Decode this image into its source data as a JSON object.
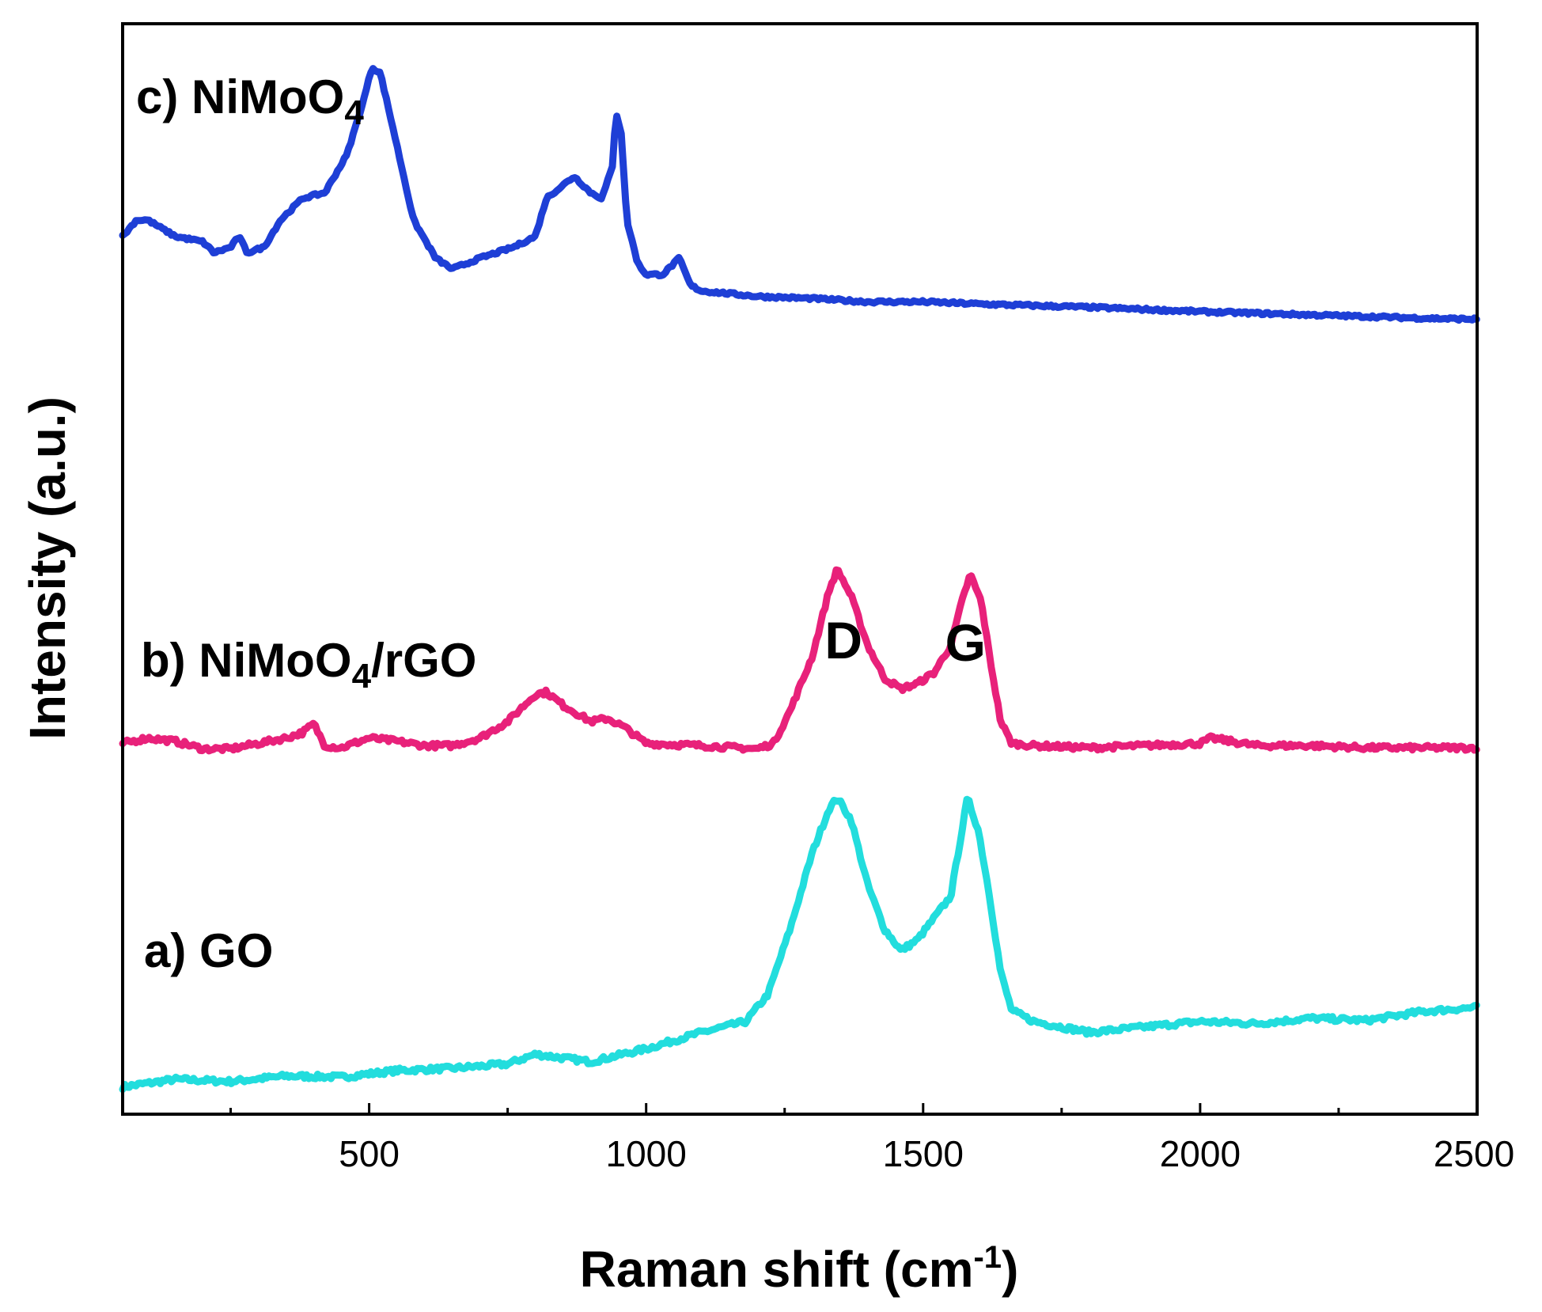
{
  "chart_data": {
    "type": "line",
    "title": "",
    "xlabel": "Raman shift (cm-1)",
    "xlabel_parts": {
      "main": "Raman shift (cm",
      "sup": "-1",
      "close": ")"
    },
    "ylabel": "Intensity (a.u.)",
    "xlim": [
      55,
      2500
    ],
    "ylim": [
      0,
      100
    ],
    "xticks": [
      500,
      1000,
      1500,
      2000,
      2500
    ],
    "xticks_minor": [
      250,
      750,
      1250,
      1750,
      2250
    ],
    "yticks": [],
    "grid": false,
    "annotations": [
      {
        "text": "D",
        "x": 1345
      },
      {
        "text": "G",
        "x": 1585
      }
    ],
    "series": [
      {
        "id": "a",
        "name": "a) GO",
        "label_parts": [
          "a) GO"
        ],
        "color": "#22dddd",
        "points": [
          [
            55,
            2.5
          ],
          [
            150,
            3.2
          ],
          [
            250,
            3.0
          ],
          [
            350,
            3.5
          ],
          [
            450,
            3.4
          ],
          [
            550,
            4.0
          ],
          [
            650,
            4.2
          ],
          [
            750,
            4.6
          ],
          [
            800,
            5.5
          ],
          [
            900,
            4.8
          ],
          [
            1000,
            6.0
          ],
          [
            1100,
            7.5
          ],
          [
            1180,
            8.5
          ],
          [
            1220,
            11
          ],
          [
            1260,
            17
          ],
          [
            1300,
            24
          ],
          [
            1330,
            28
          ],
          [
            1345,
            29
          ],
          [
            1370,
            27
          ],
          [
            1400,
            21
          ],
          [
            1430,
            17
          ],
          [
            1460,
            15
          ],
          [
            1490,
            16
          ],
          [
            1520,
            18
          ],
          [
            1550,
            20
          ],
          [
            1570,
            26
          ],
          [
            1580,
            29
          ],
          [
            1600,
            26
          ],
          [
            1620,
            20
          ],
          [
            1640,
            13
          ],
          [
            1660,
            9.5
          ],
          [
            1700,
            8.5
          ],
          [
            1800,
            7.5
          ],
          [
            1900,
            8.0
          ],
          [
            2000,
            8.5
          ],
          [
            2100,
            8.3
          ],
          [
            2200,
            8.8
          ],
          [
            2300,
            8.6
          ],
          [
            2400,
            9.4
          ],
          [
            2500,
            9.8
          ]
        ]
      },
      {
        "id": "b",
        "name": "b) NiMoO4/rGO",
        "label_parts": [
          "b) NiMoO",
          "4",
          "/rGO"
        ],
        "color": "#e8217a",
        "points": [
          [
            55,
            34
          ],
          [
            100,
            34.5
          ],
          [
            150,
            34.2
          ],
          [
            200,
            33.5
          ],
          [
            250,
            33.5
          ],
          [
            300,
            34
          ],
          [
            350,
            34.5
          ],
          [
            380,
            35
          ],
          [
            400,
            35.8
          ],
          [
            420,
            33.8
          ],
          [
            450,
            33.6
          ],
          [
            500,
            34.5
          ],
          [
            550,
            34.2
          ],
          [
            600,
            33.8
          ],
          [
            650,
            33.8
          ],
          [
            700,
            34.5
          ],
          [
            750,
            36
          ],
          [
            800,
            38.5
          ],
          [
            820,
            38.7
          ],
          [
            850,
            37.5
          ],
          [
            900,
            36
          ],
          [
            930,
            36.3
          ],
          [
            960,
            35.5
          ],
          [
            1000,
            34
          ],
          [
            1100,
            33.8
          ],
          [
            1200,
            33.5
          ],
          [
            1230,
            34
          ],
          [
            1260,
            37
          ],
          [
            1300,
            42
          ],
          [
            1330,
            48
          ],
          [
            1345,
            50
          ],
          [
            1370,
            47.5
          ],
          [
            1400,
            43
          ],
          [
            1430,
            40
          ],
          [
            1460,
            39
          ],
          [
            1490,
            39.5
          ],
          [
            1520,
            40.5
          ],
          [
            1550,
            43
          ],
          [
            1570,
            47
          ],
          [
            1585,
            49.5
          ],
          [
            1605,
            47
          ],
          [
            1620,
            42
          ],
          [
            1640,
            36
          ],
          [
            1660,
            34
          ],
          [
            1700,
            33.8
          ],
          [
            1800,
            33.6
          ],
          [
            1900,
            33.8
          ],
          [
            2000,
            34
          ],
          [
            2020,
            34.5
          ],
          [
            2100,
            33.8
          ],
          [
            2200,
            33.8
          ],
          [
            2300,
            33.6
          ],
          [
            2400,
            33.6
          ],
          [
            2500,
            33.6
          ]
        ]
      },
      {
        "id": "c",
        "name": "c) NiMoO4",
        "label_parts": [
          "c) NiMoO",
          "4"
        ],
        "color": "#1e3fd6",
        "points": [
          [
            55,
            80.5
          ],
          [
            80,
            82
          ],
          [
            100,
            82
          ],
          [
            150,
            80.5
          ],
          [
            200,
            80
          ],
          [
            220,
            79
          ],
          [
            250,
            79.5
          ],
          [
            265,
            80.5
          ],
          [
            280,
            79
          ],
          [
            310,
            79.5
          ],
          [
            340,
            82
          ],
          [
            380,
            84
          ],
          [
            420,
            84.5
          ],
          [
            460,
            88
          ],
          [
            490,
            93
          ],
          [
            505,
            96
          ],
          [
            520,
            95.5
          ],
          [
            545,
            90
          ],
          [
            580,
            82
          ],
          [
            620,
            78.5
          ],
          [
            650,
            77.5
          ],
          [
            700,
            78.5
          ],
          [
            760,
            79.5
          ],
          [
            800,
            80.5
          ],
          [
            820,
            84
          ],
          [
            845,
            85
          ],
          [
            870,
            86
          ],
          [
            900,
            84.5
          ],
          [
            920,
            84
          ],
          [
            940,
            87
          ],
          [
            945,
            92
          ],
          [
            955,
            90
          ],
          [
            965,
            82
          ],
          [
            985,
            78
          ],
          [
            1000,
            77
          ],
          [
            1030,
            77
          ],
          [
            1060,
            78.5
          ],
          [
            1080,
            76
          ],
          [
            1100,
            75.5
          ],
          [
            1200,
            75
          ],
          [
            1300,
            74.8
          ],
          [
            1400,
            74.5
          ],
          [
            1500,
            74.5
          ],
          [
            1600,
            74.3
          ],
          [
            1800,
            74.0
          ],
          [
            2000,
            73.6
          ],
          [
            2200,
            73.3
          ],
          [
            2400,
            73.0
          ],
          [
            2500,
            72.9
          ]
        ]
      }
    ]
  }
}
